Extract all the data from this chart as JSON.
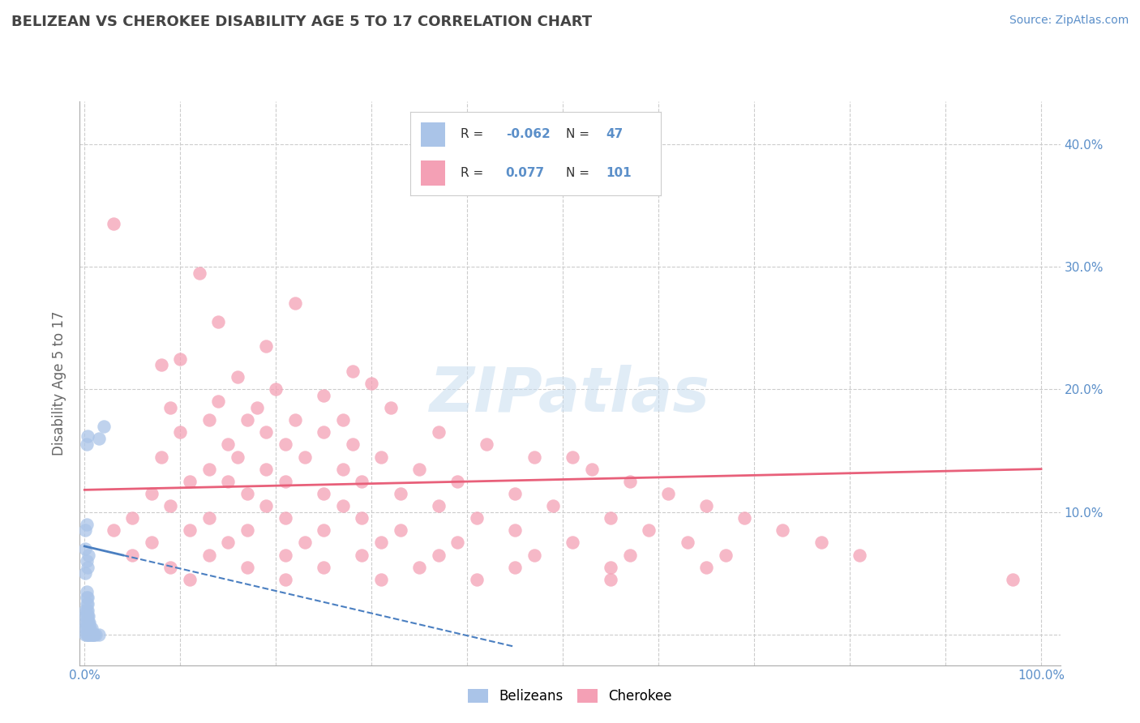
{
  "title": "BELIZEAN VS CHEROKEE DISABILITY AGE 5 TO 17 CORRELATION CHART",
  "source": "Source: ZipAtlas.com",
  "ylabel": "Disability Age 5 to 17",
  "xlim": [
    -0.005,
    1.02
  ],
  "ylim": [
    -0.025,
    0.435
  ],
  "xticks": [
    0.0,
    0.1,
    0.2,
    0.3,
    0.4,
    0.5,
    0.6,
    0.7,
    0.8,
    0.9,
    1.0
  ],
  "yticks": [
    0.0,
    0.1,
    0.2,
    0.3,
    0.4
  ],
  "belizean_color": "#aac4e8",
  "cherokee_color": "#f4a0b5",
  "belizean_R": -0.062,
  "belizean_N": 47,
  "cherokee_R": 0.077,
  "cherokee_N": 101,
  "belizean_line_color": "#4a7fc1",
  "cherokee_line_color": "#e8607a",
  "grid_color": "#cccccc",
  "title_color": "#444444",
  "tick_color": "#5b8fc9",
  "source_color": "#5b8fc9",
  "belizean_scatter": [
    [
      0.002,
      0.155
    ],
    [
      0.003,
      0.162
    ],
    [
      0.001,
      0.0
    ],
    [
      0.001,
      0.005
    ],
    [
      0.001,
      0.01
    ],
    [
      0.001,
      0.015
    ],
    [
      0.001,
      0.02
    ],
    [
      0.002,
      0.0
    ],
    [
      0.002,
      0.005
    ],
    [
      0.002,
      0.01
    ],
    [
      0.002,
      0.015
    ],
    [
      0.002,
      0.02
    ],
    [
      0.002,
      0.025
    ],
    [
      0.002,
      0.03
    ],
    [
      0.002,
      0.035
    ],
    [
      0.003,
      0.0
    ],
    [
      0.003,
      0.005
    ],
    [
      0.003,
      0.01
    ],
    [
      0.003,
      0.015
    ],
    [
      0.003,
      0.02
    ],
    [
      0.003,
      0.025
    ],
    [
      0.003,
      0.03
    ],
    [
      0.004,
      0.0
    ],
    [
      0.004,
      0.005
    ],
    [
      0.004,
      0.01
    ],
    [
      0.004,
      0.015
    ],
    [
      0.005,
      0.0
    ],
    [
      0.005,
      0.005
    ],
    [
      0.005,
      0.01
    ],
    [
      0.006,
      0.0
    ],
    [
      0.006,
      0.005
    ],
    [
      0.007,
      0.0
    ],
    [
      0.007,
      0.005
    ],
    [
      0.008,
      0.0
    ],
    [
      0.009,
      0.0
    ],
    [
      0.01,
      0.0
    ],
    [
      0.012,
      0.0
    ],
    [
      0.015,
      0.0
    ],
    [
      0.001,
      0.05
    ],
    [
      0.001,
      0.07
    ],
    [
      0.002,
      0.06
    ],
    [
      0.003,
      0.055
    ],
    [
      0.004,
      0.065
    ],
    [
      0.015,
      0.16
    ],
    [
      0.02,
      0.17
    ],
    [
      0.001,
      0.085
    ],
    [
      0.002,
      0.09
    ]
  ],
  "cherokee_scatter": [
    [
      0.03,
      0.335
    ],
    [
      0.12,
      0.295
    ],
    [
      0.22,
      0.27
    ],
    [
      0.14,
      0.255
    ],
    [
      0.19,
      0.235
    ],
    [
      0.28,
      0.215
    ],
    [
      0.08,
      0.22
    ],
    [
      0.1,
      0.225
    ],
    [
      0.16,
      0.21
    ],
    [
      0.3,
      0.205
    ],
    [
      0.2,
      0.2
    ],
    [
      0.25,
      0.195
    ],
    [
      0.09,
      0.185
    ],
    [
      0.14,
      0.19
    ],
    [
      0.18,
      0.185
    ],
    [
      0.32,
      0.185
    ],
    [
      0.13,
      0.175
    ],
    [
      0.17,
      0.175
    ],
    [
      0.22,
      0.175
    ],
    [
      0.27,
      0.175
    ],
    [
      0.1,
      0.165
    ],
    [
      0.19,
      0.165
    ],
    [
      0.25,
      0.165
    ],
    [
      0.37,
      0.165
    ],
    [
      0.15,
      0.155
    ],
    [
      0.21,
      0.155
    ],
    [
      0.28,
      0.155
    ],
    [
      0.42,
      0.155
    ],
    [
      0.08,
      0.145
    ],
    [
      0.16,
      0.145
    ],
    [
      0.23,
      0.145
    ],
    [
      0.31,
      0.145
    ],
    [
      0.47,
      0.145
    ],
    [
      0.51,
      0.145
    ],
    [
      0.13,
      0.135
    ],
    [
      0.19,
      0.135
    ],
    [
      0.27,
      0.135
    ],
    [
      0.35,
      0.135
    ],
    [
      0.53,
      0.135
    ],
    [
      0.11,
      0.125
    ],
    [
      0.15,
      0.125
    ],
    [
      0.21,
      0.125
    ],
    [
      0.29,
      0.125
    ],
    [
      0.39,
      0.125
    ],
    [
      0.57,
      0.125
    ],
    [
      0.07,
      0.115
    ],
    [
      0.17,
      0.115
    ],
    [
      0.25,
      0.115
    ],
    [
      0.33,
      0.115
    ],
    [
      0.45,
      0.115
    ],
    [
      0.61,
      0.115
    ],
    [
      0.09,
      0.105
    ],
    [
      0.19,
      0.105
    ],
    [
      0.27,
      0.105
    ],
    [
      0.37,
      0.105
    ],
    [
      0.49,
      0.105
    ],
    [
      0.65,
      0.105
    ],
    [
      0.05,
      0.095
    ],
    [
      0.13,
      0.095
    ],
    [
      0.21,
      0.095
    ],
    [
      0.29,
      0.095
    ],
    [
      0.41,
      0.095
    ],
    [
      0.55,
      0.095
    ],
    [
      0.69,
      0.095
    ],
    [
      0.03,
      0.085
    ],
    [
      0.11,
      0.085
    ],
    [
      0.17,
      0.085
    ],
    [
      0.25,
      0.085
    ],
    [
      0.33,
      0.085
    ],
    [
      0.45,
      0.085
    ],
    [
      0.59,
      0.085
    ],
    [
      0.73,
      0.085
    ],
    [
      0.07,
      0.075
    ],
    [
      0.15,
      0.075
    ],
    [
      0.23,
      0.075
    ],
    [
      0.31,
      0.075
    ],
    [
      0.39,
      0.075
    ],
    [
      0.51,
      0.075
    ],
    [
      0.63,
      0.075
    ],
    [
      0.77,
      0.075
    ],
    [
      0.05,
      0.065
    ],
    [
      0.13,
      0.065
    ],
    [
      0.21,
      0.065
    ],
    [
      0.29,
      0.065
    ],
    [
      0.37,
      0.065
    ],
    [
      0.47,
      0.065
    ],
    [
      0.57,
      0.065
    ],
    [
      0.67,
      0.065
    ],
    [
      0.81,
      0.065
    ],
    [
      0.09,
      0.055
    ],
    [
      0.17,
      0.055
    ],
    [
      0.25,
      0.055
    ],
    [
      0.35,
      0.055
    ],
    [
      0.45,
      0.055
    ],
    [
      0.55,
      0.055
    ],
    [
      0.65,
      0.055
    ],
    [
      0.55,
      0.045
    ],
    [
      0.11,
      0.045
    ],
    [
      0.21,
      0.045
    ],
    [
      0.31,
      0.045
    ],
    [
      0.41,
      0.045
    ],
    [
      0.97,
      0.045
    ]
  ],
  "belizean_line_x": [
    0.0,
    0.45
  ],
  "belizean_line_y": [
    0.072,
    -0.01
  ],
  "cherokee_line_x": [
    0.0,
    1.0
  ],
  "cherokee_line_y": [
    0.118,
    0.135
  ],
  "watermark_text": "ZIPatlas",
  "watermark_fontsize": 55,
  "legend_belizean_label": "Belizeans",
  "legend_cherokee_label": "Cherokee"
}
